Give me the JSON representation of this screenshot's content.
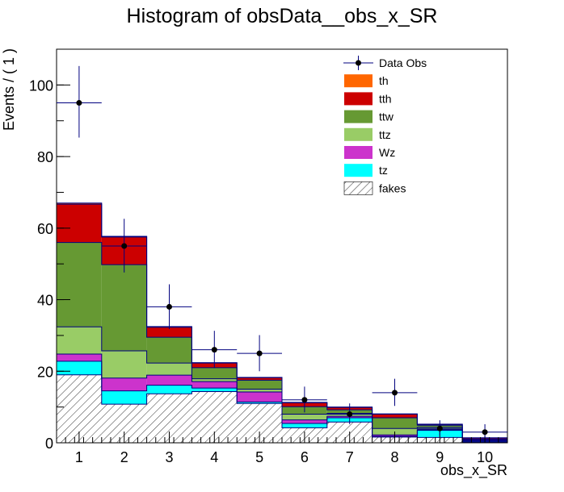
{
  "chart_data": {
    "type": "bar",
    "stacked": true,
    "title": "Histogram of obsData__obs_x_SR",
    "xlabel": "obs_x_SR",
    "ylabel": "Events / ( 1 )",
    "xlim": [
      0.5,
      10.5
    ],
    "ylim": [
      0,
      110
    ],
    "x_ticks": [
      1,
      2,
      3,
      4,
      5,
      6,
      7,
      8,
      9,
      10
    ],
    "y_ticks": [
      0,
      20,
      40,
      60,
      80,
      100
    ],
    "categories": [
      1,
      2,
      3,
      4,
      5,
      6,
      7,
      8,
      9,
      10
    ],
    "series": [
      {
        "name": "fakes",
        "color": "#ffffff",
        "hatch": true,
        "values": [
          19,
          10.8,
          13.7,
          14.3,
          11,
          4.2,
          5.8,
          1.6,
          1.5,
          0.2
        ]
      },
      {
        "name": "tz",
        "color": "#00ffff",
        "values": [
          3.8,
          3.7,
          2.4,
          1.0,
          0.4,
          1.2,
          1.2,
          0.2,
          2.0,
          0.2
        ]
      },
      {
        "name": "Wz",
        "color": "#cc33cc",
        "values": [
          2.0,
          3.6,
          2.8,
          1.8,
          2.8,
          1.0,
          0.4,
          0.4,
          0.2,
          0.2
        ]
      },
      {
        "name": "ttz",
        "color": "#99cc66",
        "values": [
          7.6,
          7.6,
          3.4,
          0.8,
          0.8,
          1.6,
          0.8,
          1.8,
          0.6,
          0.2
        ]
      },
      {
        "name": "ttw",
        "color": "#669933",
        "values": [
          23.6,
          24.1,
          7.2,
          3.1,
          2.5,
          2.1,
          1.0,
          3.0,
          0.6,
          0.2
        ]
      },
      {
        "name": "tth",
        "color": "#cc0000",
        "values": [
          10.7,
          7.7,
          2.8,
          1.3,
          0.7,
          1.1,
          0.7,
          1.0,
          0.2,
          0.3
        ]
      },
      {
        "name": "th",
        "color": "#ff6600",
        "values": [
          0.3,
          0.2,
          0.2,
          0.1,
          0.1,
          0.1,
          0.1,
          0.1,
          0.1,
          0.1
        ]
      }
    ],
    "data_obs": {
      "name": "Data Obs",
      "color": "#000000",
      "x": [
        1,
        2,
        3,
        4,
        5,
        6,
        7,
        8,
        9,
        10
      ],
      "y": [
        95,
        55,
        38,
        26,
        25,
        12,
        8,
        14,
        4,
        3
      ],
      "err_low": [
        9.7,
        7.4,
        6.2,
        5.1,
        5.0,
        3.5,
        2.8,
        3.7,
        2.0,
        1.6
      ],
      "err_high": [
        10.3,
        7.6,
        6.3,
        5.3,
        5.1,
        3.7,
        3.0,
        3.9,
        2.3,
        2.2
      ]
    },
    "legend": {
      "position": "top-right",
      "order": [
        "Data Obs",
        "th",
        "tth",
        "ttw",
        "ttz",
        "Wz",
        "tz",
        "fakes"
      ]
    },
    "grid": false
  }
}
